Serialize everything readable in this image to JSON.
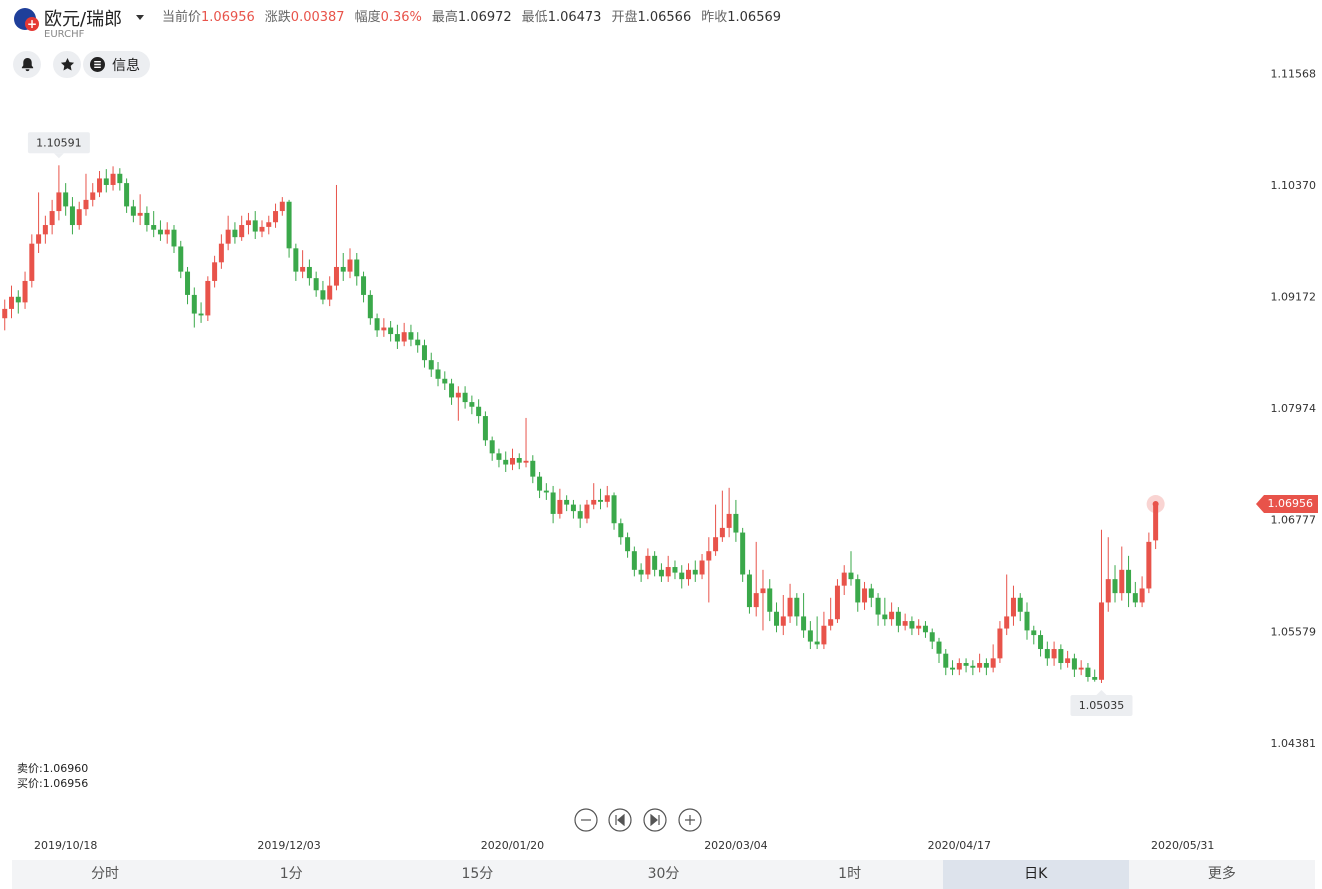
{
  "header": {
    "name": "欧元/瑞郎",
    "code": "EURCHF",
    "quotes": [
      {
        "label": "当前价",
        "value": "1.06956"
      },
      {
        "label": "涨跌",
        "value": "0.00387"
      },
      {
        "label": "幅度",
        "value": "0.36%"
      },
      {
        "label": "最高",
        "value": "1.06972"
      },
      {
        "label": "最低",
        "value": "1.06473"
      },
      {
        "label": "开盘",
        "value": "1.06566"
      },
      {
        "label": "昨收",
        "value": "1.06569"
      }
    ]
  },
  "buttons": {
    "info": "信息"
  },
  "bid_ask": [
    "卖价:1.06960",
    "买价:1.06956"
  ],
  "tabs": [
    "分时",
    "1分",
    "15分",
    "30分",
    "1时",
    "日K",
    "更多"
  ],
  "chart_data": {
    "type": "candlestick",
    "up_color": "#e8534a",
    "down_color": "#3aa84a",
    "ylim": [
      1.0378,
      1.12
    ],
    "yticks": [
      1.11568,
      {
        "value": 1.1037,
        "label": "1.10370"
      },
      1.09172,
      1.07974,
      1.06777,
      1.05579,
      1.04381
    ],
    "xlim": [
      -0.7,
      183.2
    ],
    "xticks": [
      {
        "value": 9,
        "label": "2019/10/18"
      },
      {
        "value": 42,
        "label": "2019/12/03"
      },
      {
        "value": 75,
        "label": "2020/01/20"
      },
      {
        "value": 108,
        "label": "2020/03/04"
      },
      {
        "value": 141,
        "label": "2020/04/17"
      },
      {
        "value": 174,
        "label": "2020/05/31"
      }
    ],
    "open": [
      1.0895,
      1.0905,
      1.0918,
      1.0912,
      1.0935,
      1.0975,
      1.0985,
      1.0995,
      1.101,
      1.103,
      1.1015,
      1.0995,
      1.1012,
      1.1022,
      1.103,
      1.1045,
      1.1038,
      1.105,
      1.104,
      1.1015,
      1.1005,
      1.1008,
      1.0995,
      1.099,
      1.0985,
      1.099,
      1.0972,
      1.0945,
      1.092,
      1.09,
      1.0898,
      1.0935,
      1.0955,
      1.0975,
      1.099,
      1.0982,
      1.0995,
      1.1,
      1.0988,
      1.0993,
      1.0998,
      1.101,
      1.102,
      1.097,
      1.0945,
      1.095,
      1.0938,
      1.0925,
      1.0915,
      1.093,
      1.095,
      1.0945,
      1.0958,
      1.094,
      1.092,
      1.0895,
      1.0882,
      1.0885,
      1.0878,
      1.087,
      1.088,
      1.0872,
      1.0866,
      1.085,
      1.084,
      1.083,
      1.0825,
      1.081,
      1.0815,
      1.0805,
      1.08,
      1.079,
      1.0764,
      1.075,
      1.0743,
      1.0738,
      1.0745,
      1.074,
      1.0742,
      1.0725,
      1.071,
      1.0708,
      1.0685,
      1.07,
      1.0695,
      1.0688,
      1.068,
      1.0695,
      1.07,
      1.0698,
      1.0705,
      1.0675,
      1.066,
      1.0645,
      1.0625,
      1.062,
      1.064,
      1.0625,
      1.0618,
      1.0628,
      1.0622,
      1.0615,
      1.0625,
      1.062,
      1.0635,
      1.0645,
      1.066,
      1.067,
      1.0685,
      1.0665,
      1.062,
      1.0585,
      1.06,
      1.0605,
      1.058,
      1.0565,
      1.0575,
      1.0595,
      1.0575,
      1.056,
      1.0548,
      1.0545,
      1.0565,
      1.0572,
      1.0608,
      1.0622,
      1.0615,
      1.059,
      1.0605,
      1.0595,
      1.0577,
      1.0572,
      1.058,
      1.0565,
      1.057,
      1.0562,
      1.0565,
      1.0558,
      1.0548,
      1.0535,
      1.052,
      1.0518,
      1.0525,
      1.0522,
      1.052,
      1.0525,
      1.052,
      1.053,
      1.0562,
      1.0575,
      1.0595,
      1.058,
      1.056,
      1.0555,
      1.054,
      1.053,
      1.054,
      1.0525,
      1.053,
      1.0518,
      1.052,
      1.051,
      1.0507,
      1.059,
      1.0615,
      1.06,
      1.0625,
      1.06,
      1.059,
      1.0605,
      1.06566
    ],
    "high": [
      1.0915,
      1.093,
      1.0925,
      1.0945,
      1.0985,
      1.103,
      1.1005,
      1.1022,
      1.10591,
      1.104,
      1.1025,
      1.102,
      1.105,
      1.104,
      1.1053,
      1.1055,
      1.1058,
      1.1056,
      1.1045,
      1.1022,
      1.1028,
      1.1015,
      1.101,
      1.1,
      1.0998,
      1.0995,
      1.0978,
      1.095,
      1.0928,
      1.0912,
      1.094,
      1.0962,
      1.0985,
      1.1005,
      1.0998,
      1.1005,
      1.1008,
      1.101,
      1.1,
      1.1005,
      1.1018,
      1.1025,
      1.1022,
      1.0975,
      1.0968,
      1.0958,
      1.0945,
      1.0935,
      1.094,
      1.1038,
      1.0965,
      1.097,
      1.0965,
      1.0945,
      1.0925,
      1.09,
      1.0895,
      1.0892,
      1.0888,
      1.089,
      1.0888,
      1.088,
      1.0872,
      1.0858,
      1.0848,
      1.0838,
      1.083,
      1.0822,
      1.0822,
      1.0812,
      1.0808,
      1.0795,
      1.0768,
      1.0755,
      1.0752,
      1.0755,
      1.075,
      1.0788,
      1.0748,
      1.073,
      1.0718,
      1.0715,
      1.0712,
      1.0705,
      1.07,
      1.0695,
      1.07,
      1.0718,
      1.0712,
      1.0715,
      1.0708,
      1.068,
      1.0665,
      1.065,
      1.0632,
      1.0648,
      1.0645,
      1.0632,
      1.064,
      1.0635,
      1.063,
      1.0632,
      1.0635,
      1.0642,
      1.066,
      1.0695,
      1.071,
      1.0713,
      1.07,
      1.067,
      1.0625,
      1.0655,
      1.0625,
      1.0615,
      1.059,
      1.0598,
      1.061,
      1.06,
      1.06,
      1.057,
      1.0575,
      1.058,
      1.0595,
      1.0615,
      1.063,
      1.0645,
      1.062,
      1.0612,
      1.061,
      1.06,
      1.0595,
      1.059,
      1.0585,
      1.0578,
      1.0575,
      1.0572,
      1.057,
      1.0562,
      1.0552,
      1.054,
      1.0528,
      1.053,
      1.053,
      1.0528,
      1.0535,
      1.053,
      1.0545,
      1.057,
      1.062,
      1.0608,
      1.06,
      1.059,
      1.0565,
      1.056,
      1.0548,
      1.0548,
      1.0545,
      1.0538,
      1.0535,
      1.0528,
      1.0525,
      1.0518,
      1.0668,
      1.066,
      1.063,
      1.065,
      1.064,
      1.0612,
      1.0618,
      1.0665,
      1.06972
    ],
    "low": [
      1.0882,
      1.0895,
      1.09,
      1.0905,
      1.0928,
      1.0965,
      1.0975,
      1.0985,
      1.1,
      1.1005,
      1.0985,
      1.099,
      1.1005,
      1.1015,
      1.1025,
      1.103,
      1.1032,
      1.1032,
      1.1008,
      1.0998,
      1.0995,
      1.0988,
      1.0982,
      1.0978,
      1.0975,
      1.0965,
      1.0938,
      1.091,
      1.0885,
      1.089,
      1.0892,
      1.0928,
      1.0948,
      1.0968,
      1.0975,
      1.0978,
      1.0985,
      1.098,
      1.0982,
      1.0985,
      1.0992,
      1.1005,
      1.096,
      1.0935,
      1.0938,
      1.093,
      1.0918,
      1.091,
      1.0908,
      1.0925,
      1.0935,
      1.0938,
      1.093,
      1.0912,
      1.0888,
      1.0875,
      1.0875,
      1.087,
      1.0862,
      1.0865,
      1.0865,
      1.0858,
      1.0842,
      1.0832,
      1.0822,
      1.0818,
      1.0802,
      1.0785,
      1.0798,
      1.0792,
      1.0782,
      1.0758,
      1.0742,
      1.0735,
      1.073,
      1.0732,
      1.0733,
      1.0735,
      1.0718,
      1.0702,
      1.07,
      1.0675,
      1.068,
      1.0688,
      1.068,
      1.067,
      1.0675,
      1.069,
      1.069,
      1.0692,
      1.0668,
      1.0652,
      1.0638,
      1.0618,
      1.0612,
      1.0615,
      1.0618,
      1.0612,
      1.0612,
      1.0615,
      1.0605,
      1.0608,
      1.0612,
      1.0615,
      1.059,
      1.064,
      1.0655,
      1.066,
      1.0655,
      1.0612,
      1.0578,
      1.0575,
      1.056,
      1.057,
      1.0558,
      1.0555,
      1.0568,
      1.0565,
      1.0552,
      1.054,
      1.054,
      1.054,
      1.056,
      1.0568,
      1.0598,
      1.0608,
      1.058,
      1.0582,
      1.0585,
      1.0565,
      1.0565,
      1.0565,
      1.0558,
      1.056,
      1.0555,
      1.0555,
      1.0552,
      1.054,
      1.0525,
      1.0512,
      1.0512,
      1.0512,
      1.0515,
      1.0512,
      1.0515,
      1.0512,
      1.0515,
      1.0525,
      1.0555,
      1.0565,
      1.057,
      1.055,
      1.0545,
      1.0532,
      1.0522,
      1.0522,
      1.0518,
      1.052,
      1.051,
      1.0512,
      1.0505,
      1.0505,
      1.05035,
      1.058,
      1.059,
      1.0592,
      1.0585,
      1.0585,
      1.0585,
      1.06,
      1.06473
    ],
    "close": [
      1.0905,
      1.0918,
      1.0912,
      1.0935,
      1.0975,
      1.0985,
      1.0995,
      1.101,
      1.103,
      1.1015,
      1.0995,
      1.1012,
      1.1022,
      1.103,
      1.1045,
      1.1038,
      1.105,
      1.104,
      1.1015,
      1.1005,
      1.1008,
      1.0995,
      1.099,
      1.0985,
      1.099,
      1.0972,
      1.0945,
      1.092,
      1.09,
      1.0898,
      1.0935,
      1.0955,
      1.0975,
      1.099,
      1.0982,
      1.0995,
      1.1,
      1.0988,
      1.0993,
      1.0998,
      1.101,
      1.102,
      1.097,
      1.0945,
      1.095,
      1.0938,
      1.0925,
      1.0915,
      1.093,
      1.095,
      1.0945,
      1.0958,
      1.094,
      1.092,
      1.0895,
      1.0882,
      1.0885,
      1.0878,
      1.087,
      1.088,
      1.0872,
      1.0866,
      1.085,
      1.084,
      1.083,
      1.0825,
      1.081,
      1.0815,
      1.0805,
      1.08,
      1.079,
      1.0764,
      1.075,
      1.0743,
      1.0738,
      1.0745,
      1.074,
      1.0742,
      1.0725,
      1.071,
      1.0708,
      1.0685,
      1.07,
      1.0695,
      1.0688,
      1.068,
      1.0695,
      1.07,
      1.0698,
      1.0705,
      1.0675,
      1.066,
      1.0645,
      1.0625,
      1.062,
      1.064,
      1.0625,
      1.0618,
      1.0628,
      1.0622,
      1.0615,
      1.0625,
      1.062,
      1.0635,
      1.0645,
      1.066,
      1.067,
      1.0685,
      1.0665,
      1.062,
      1.0585,
      1.06,
      1.0605,
      1.058,
      1.0565,
      1.0575,
      1.0595,
      1.0575,
      1.056,
      1.0548,
      1.0545,
      1.0565,
      1.0572,
      1.0608,
      1.0622,
      1.0615,
      1.059,
      1.0605,
      1.0595,
      1.0577,
      1.0572,
      1.058,
      1.0565,
      1.057,
      1.0562,
      1.0565,
      1.0558,
      1.0548,
      1.0535,
      1.052,
      1.0518,
      1.0525,
      1.0522,
      1.052,
      1.0525,
      1.052,
      1.053,
      1.0562,
      1.0575,
      1.0595,
      1.058,
      1.056,
      1.0555,
      1.054,
      1.053,
      1.054,
      1.0525,
      1.053,
      1.0518,
      1.052,
      1.051,
      1.0507,
      1.059,
      1.0615,
      1.06,
      1.0625,
      1.06,
      1.059,
      1.0605,
      1.0655,
      1.06956
    ]
  }
}
